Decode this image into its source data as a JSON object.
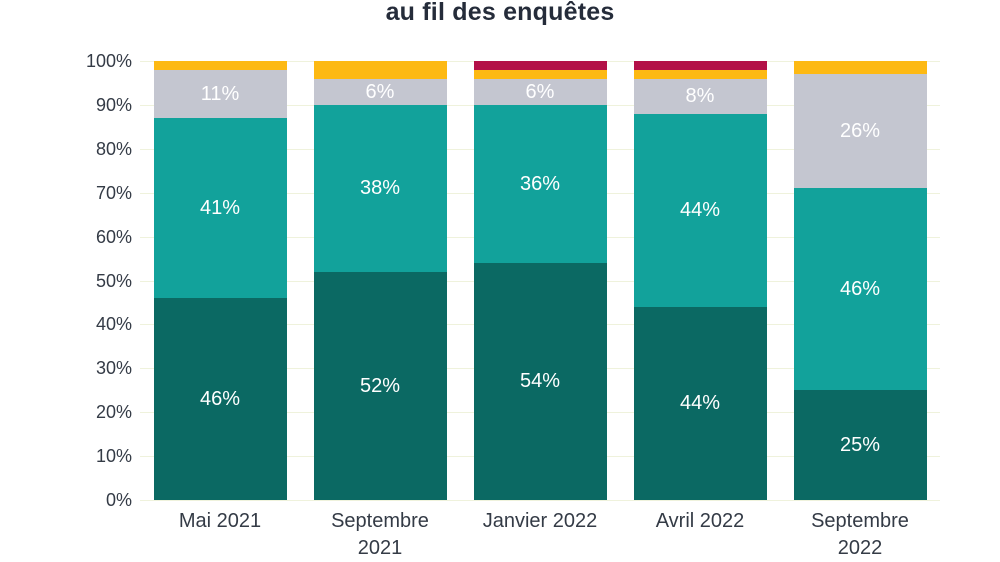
{
  "title": "au fil des enquêtes",
  "colors": {
    "background": "#FFFFFF",
    "grid": "#EFF2DC",
    "title_text": "#252C3A",
    "axis_text": "#343B46",
    "bar_label_text": "#FFFFFF"
  },
  "chart_data": {
    "type": "bar",
    "stacked": true,
    "title": "au fil des enquêtes",
    "xlabel": "",
    "ylabel": "",
    "grid": true,
    "legend": "none",
    "ylim": [
      0,
      100
    ],
    "y_ticks": [
      "100%",
      "90%",
      "80%",
      "70%",
      "60%",
      "50%",
      "40%",
      "30%",
      "20%",
      "10%",
      "0%"
    ],
    "categories": [
      "Mai 2021",
      "Septembre\n2021",
      "Janvier 2022",
      "Avril 2022",
      "Septembre\n2022"
    ],
    "series": [
      {
        "name": "vert-fonce",
        "color": "#0B6963",
        "values": [
          46,
          52,
          54,
          44,
          25
        ],
        "labels": [
          "46%",
          "52%",
          "54%",
          "44%",
          "25%"
        ]
      },
      {
        "name": "turquoise",
        "color": "#12A29B",
        "values": [
          41,
          38,
          36,
          44,
          46
        ],
        "labels": [
          "41%",
          "38%",
          "36%",
          "44%",
          "46%"
        ]
      },
      {
        "name": "gris",
        "color": "#C4C6D0",
        "values": [
          11,
          6,
          6,
          8,
          26
        ],
        "labels": [
          "11%",
          "6%",
          "6%",
          "8%",
          "26%"
        ]
      },
      {
        "name": "jaune",
        "color": "#FDB913",
        "values": [
          2,
          4,
          2,
          2,
          3
        ],
        "labels": [
          "",
          "",
          "",
          "",
          ""
        ]
      },
      {
        "name": "rouge",
        "color": "#B31047",
        "values": [
          0,
          0,
          2,
          2,
          0
        ],
        "labels": [
          "",
          "",
          "",
          "",
          ""
        ]
      }
    ]
  }
}
